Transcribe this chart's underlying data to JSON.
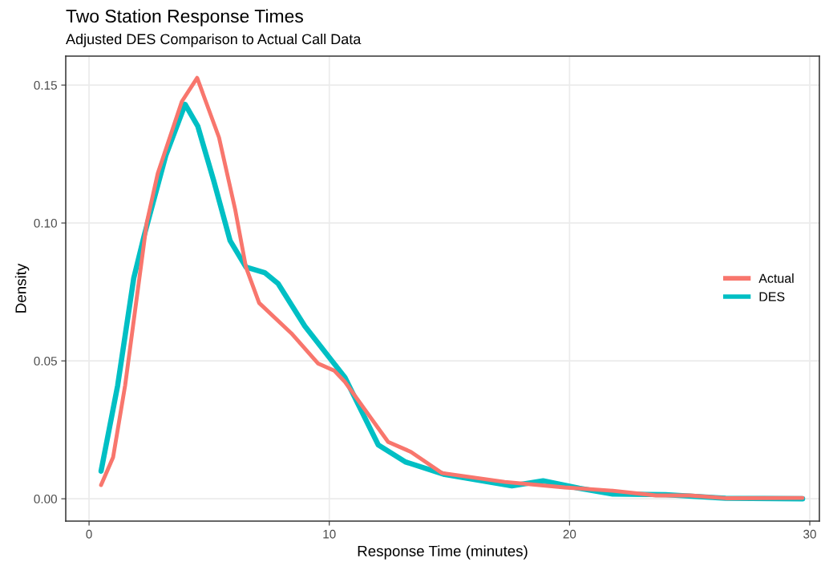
{
  "chart_data": {
    "type": "line",
    "title": "Two Station Response Times",
    "subtitle": "Adjusted DES Comparison to Actual Call Data",
    "xlabel": "Response Time (minutes)",
    "ylabel": "Density",
    "xlim": [
      -0.97,
      30.4
    ],
    "ylim": [
      -0.0081,
      0.1605
    ],
    "xticks": [
      0,
      10,
      20,
      30
    ],
    "yticks": [
      {
        "value": 0,
        "label": "0.00"
      },
      {
        "value": 0.05,
        "label": "0.05"
      },
      {
        "value": 0.1,
        "label": "0.10"
      },
      {
        "value": 0.15,
        "label": "0.15"
      }
    ],
    "grid": true,
    "legend": "right",
    "line_style": "solid",
    "marker": "none",
    "series": [
      {
        "name": "Actual",
        "color": "#f8766d",
        "x": [
          0.5,
          1.0,
          1.5,
          2.4,
          2.86,
          3.86,
          4.5,
          5.41,
          6.08,
          6.53,
          7.08,
          8.42,
          9.54,
          10.2,
          10.65,
          12.45,
          13.4,
          14.7,
          17.3,
          19.8,
          21.8,
          23.6,
          25,
          26.5,
          29.7
        ],
        "values": [
          0.005,
          0.015,
          0.041,
          0.1,
          0.118,
          0.144,
          0.1526,
          0.131,
          0.105,
          0.084,
          0.071,
          0.06,
          0.049,
          0.0465,
          0.0424,
          0.0206,
          0.017,
          0.0093,
          0.0061,
          0.0041,
          0.0029,
          0.0012,
          0.0012,
          0.0002,
          0.0003
        ]
      },
      {
        "name": "DES",
        "color": "#00bfc4",
        "x": [
          0.5,
          1.19,
          1.86,
          2.3,
          3.2,
          4.0,
          4.53,
          5.2,
          5.87,
          6.53,
          7.31,
          7.87,
          8.98,
          10.65,
          12.04,
          13.16,
          14.8,
          17.6,
          18.9,
          20.4,
          21.8,
          24,
          26.5,
          29.7
        ],
        "values": [
          0.01,
          0.041,
          0.08,
          0.0956,
          0.1246,
          0.143,
          0.135,
          0.115,
          0.0936,
          0.084,
          0.082,
          0.078,
          0.0626,
          0.044,
          0.0195,
          0.0134,
          0.0088,
          0.0047,
          0.0065,
          0.0038,
          0.0017,
          0.0015,
          0.0002,
          0.0
        ]
      }
    ]
  }
}
